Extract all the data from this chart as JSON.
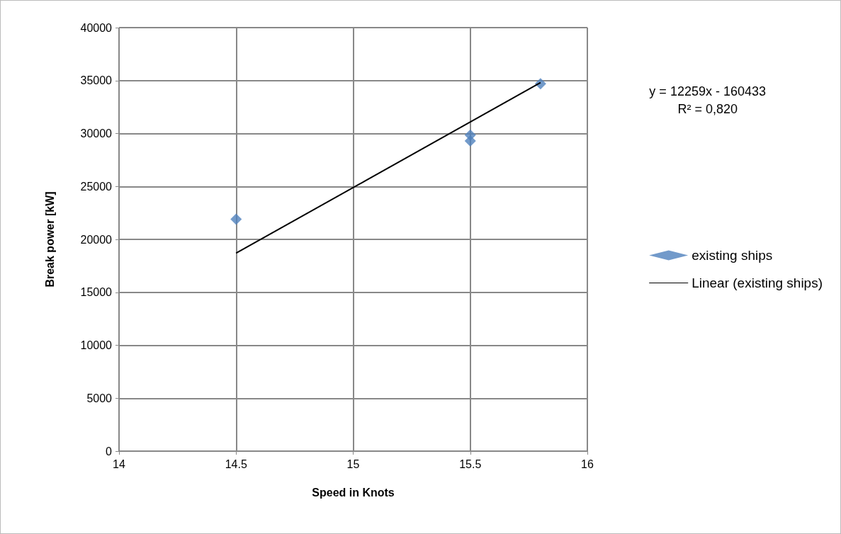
{
  "chart_data": {
    "type": "scatter",
    "xlabel": "Speed in Knots",
    "ylabel": "Break power [kW]",
    "annotations": [
      "y = 12259x - 160433\nR² = 0,820"
    ],
    "x": [
      14.5,
      15.5,
      15.5,
      15.8
    ],
    "series": [
      {
        "name": "existing ships",
        "color": "#4f81bd",
        "values": [
          21900,
          29850,
          29300,
          34700
        ],
        "marker": "diamond"
      },
      {
        "name": "Linear (existing ships)",
        "type": "line",
        "color": "#000000",
        "x": [
          14.5,
          15.8
        ],
        "values": [
          18700,
          34800
        ],
        "marker": "none"
      }
    ],
    "xlim": [
      14,
      16
    ],
    "xticks": [
      14,
      14.5,
      15,
      15.5,
      16
    ],
    "ylim": [
      0,
      40000
    ],
    "yticks": [
      0,
      5000,
      10000,
      15000,
      20000,
      25000,
      30000,
      35000,
      40000
    ],
    "grid": true,
    "legend": "right"
  }
}
